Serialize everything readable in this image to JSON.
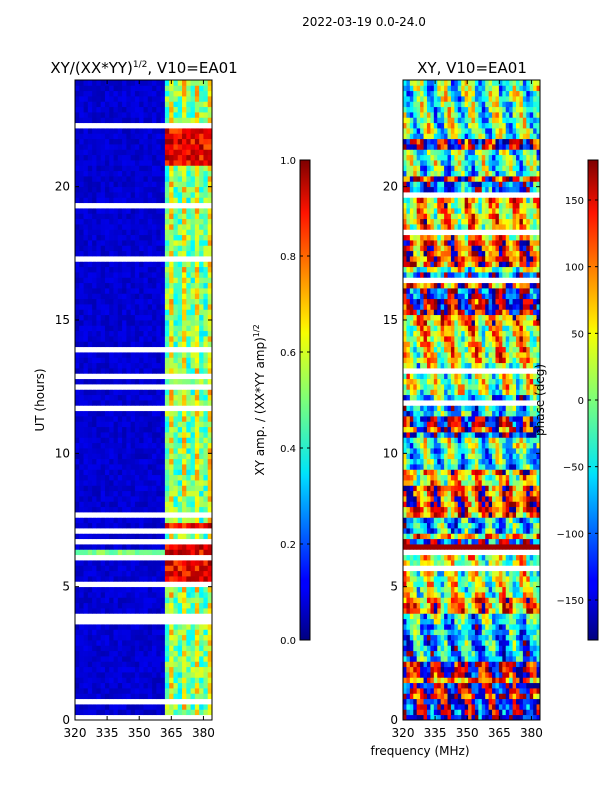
{
  "figure_title": "2022-03-19 0.0-24.0",
  "shared_xlabel": "frequency (MHz)",
  "chart_data": [
    {
      "type": "heatmap",
      "title_main": "XY/(XX*YY)",
      "title_sup": "1/2",
      "title_rest": ", V10=EA01",
      "xlabel": "",
      "ylabel": "UT (hours)",
      "xlim": [
        320,
        384
      ],
      "ylim": [
        0,
        24
      ],
      "xticks": [
        320,
        335,
        350,
        365,
        380
      ],
      "yticks": [
        0,
        5,
        10,
        15,
        20
      ],
      "colormap": "jet",
      "colorbar": {
        "label_main": "XY amp. / (XX*YY amp)",
        "label_sup": "1/2",
        "range": [
          0.0,
          1.0
        ],
        "ticks": [
          "0.0",
          "0.2",
          "0.4",
          "0.6",
          "0.8",
          "1.0"
        ],
        "tick_values": [
          0.0,
          0.2,
          0.4,
          0.6,
          0.8,
          1.0
        ]
      },
      "high_amplitude_freq_band_MHz": [
        361,
        384
      ],
      "strong_time_bands_UT": [
        [
          5.0,
          6.6
        ],
        [
          6.9,
          7.3
        ],
        [
          20.8,
          22.4
        ]
      ]
    },
    {
      "type": "heatmap",
      "title_main": "XY, V10=EA01",
      "xlabel": "frequency (MHz)",
      "ylabel": "",
      "xlim": [
        320,
        384
      ],
      "ylim": [
        0,
        24
      ],
      "xticks": [
        320,
        335,
        350,
        365,
        380
      ],
      "yticks": [
        0,
        5,
        10,
        15,
        20
      ],
      "colormap": "jet",
      "colorbar": {
        "label": "phase (deg)",
        "range": [
          -180,
          180
        ],
        "ticks": [
          "−150",
          "−100",
          "−50",
          "0",
          "50",
          "100",
          "150"
        ],
        "tick_values": [
          -150,
          -100,
          -50,
          0,
          50,
          100,
          150
        ]
      }
    }
  ]
}
